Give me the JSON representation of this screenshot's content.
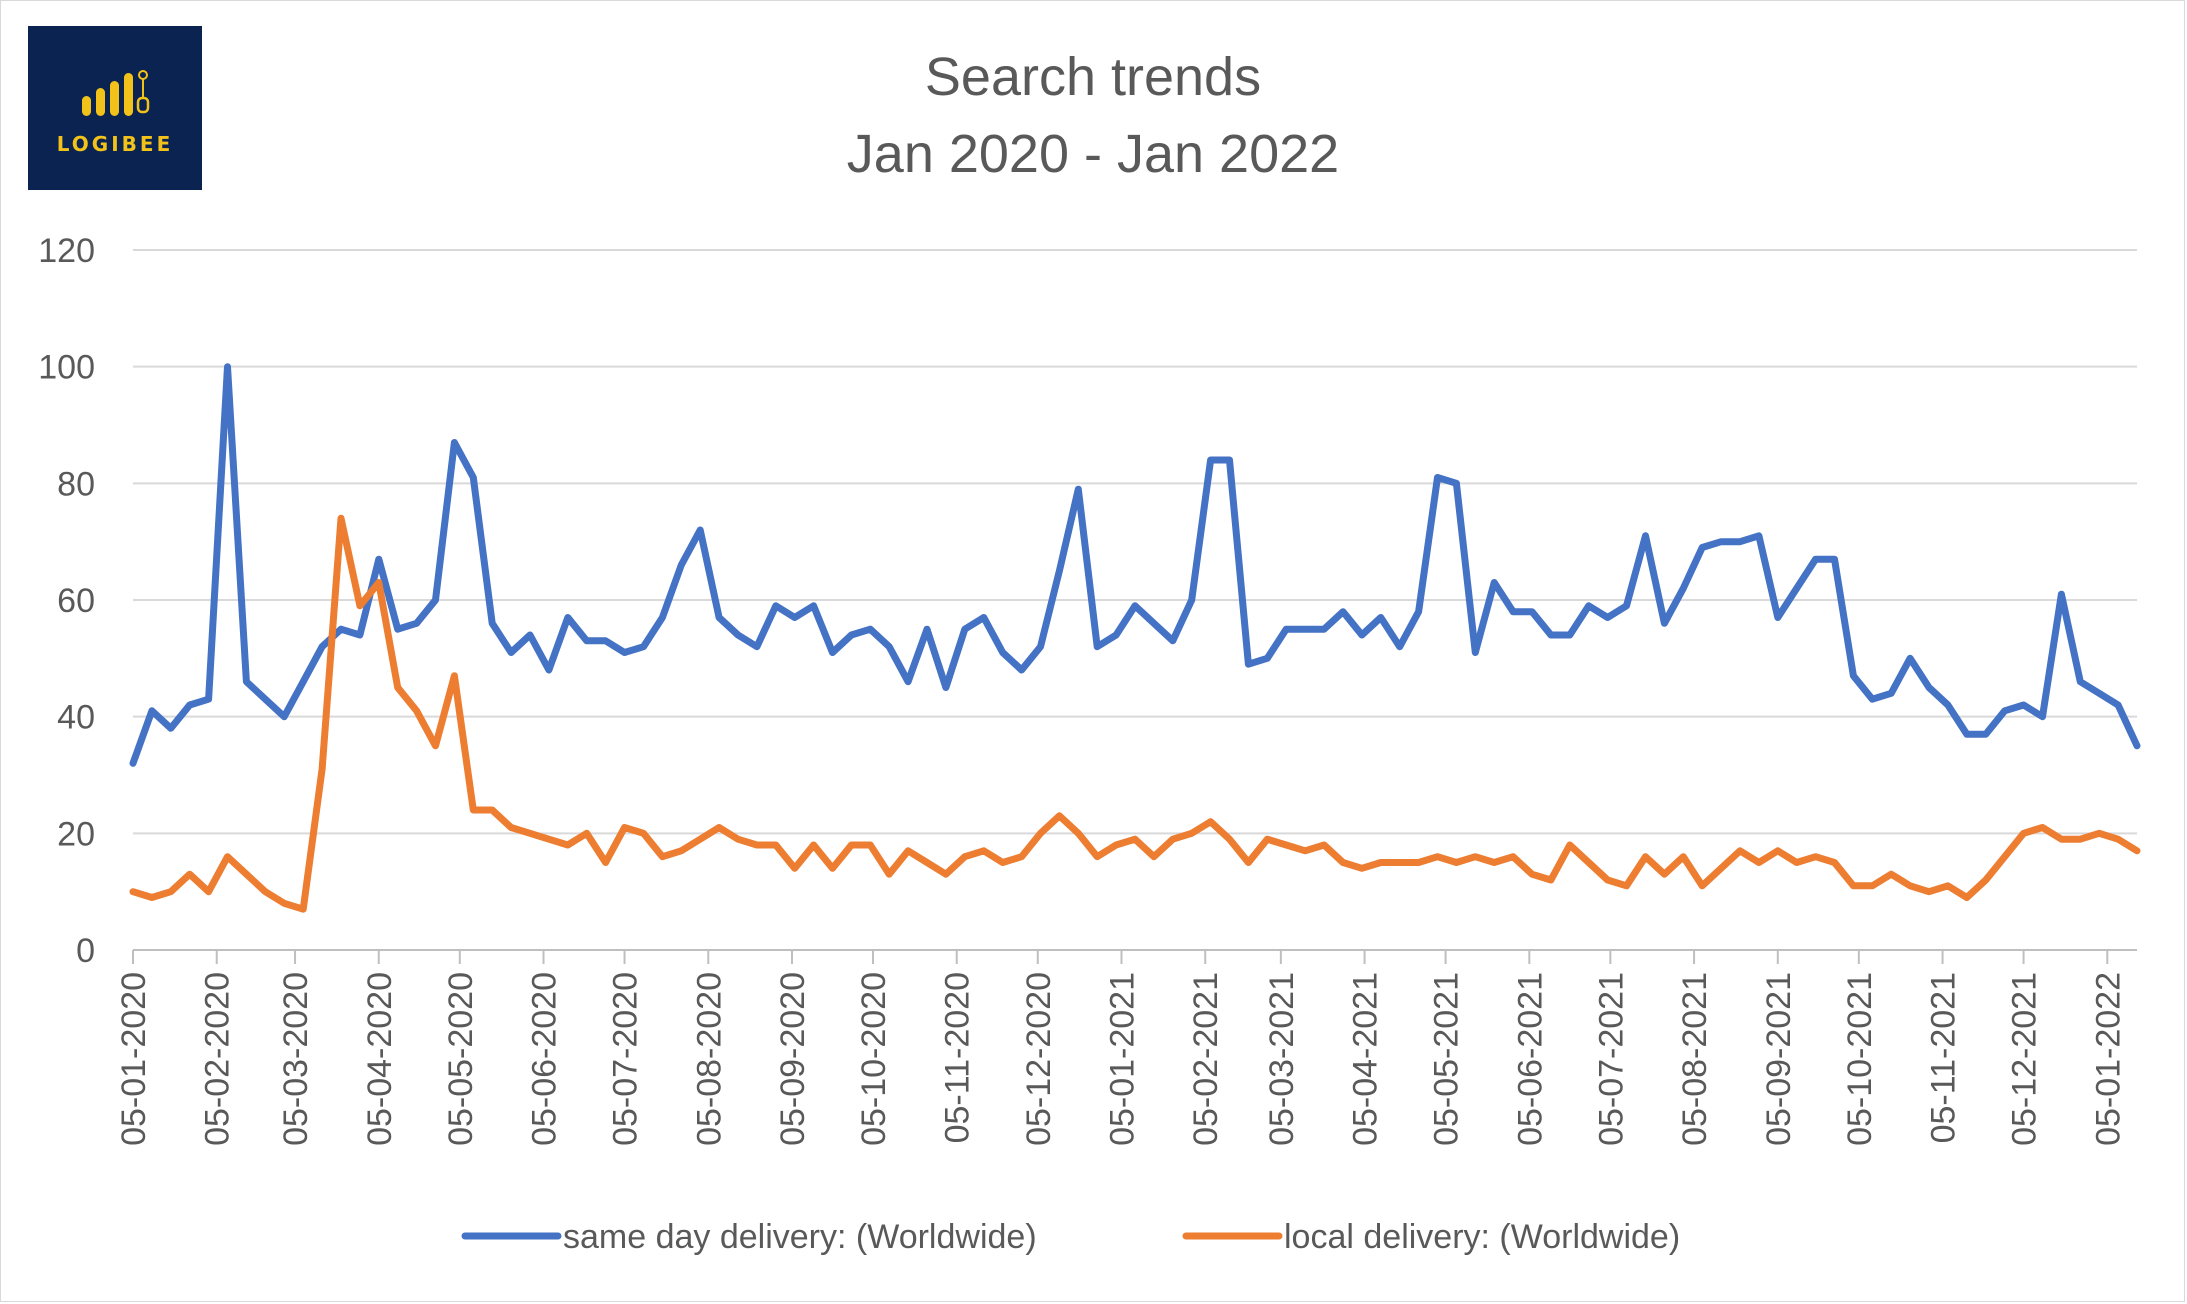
{
  "logo": {
    "text": "LOGIBEE",
    "bg": "#0b2350",
    "accent": "#f2c21b"
  },
  "chart_data": {
    "type": "line",
    "title": [
      "Search trends",
      "Jan 2020 - Jan 2022"
    ],
    "xlabel": "",
    "ylabel": "",
    "ylim": [
      0,
      120
    ],
    "yticks": [
      0,
      20,
      40,
      60,
      80,
      100,
      120
    ],
    "grid": true,
    "legend": "bottom",
    "x_tick_labels": [
      "05-01-2020",
      "05-02-2020",
      "05-03-2020",
      "05-04-2020",
      "05-05-2020",
      "05-06-2020",
      "05-07-2020",
      "05-08-2020",
      "05-09-2020",
      "05-10-2020",
      "05-11-2020",
      "05-12-2020",
      "05-01-2021",
      "05-02-2021",
      "05-03-2021",
      "05-04-2021",
      "05-05-2021",
      "05-06-2021",
      "05-07-2021",
      "05-08-2021",
      "05-09-2021",
      "05-10-2021",
      "05-11-2021",
      "05-12-2021",
      "05-01-2022"
    ],
    "x_start": "2020-01-05",
    "x_step_days": 7,
    "series": [
      {
        "name": "same day delivery: (Worldwide)",
        "color": "#4472c4",
        "values": [
          32,
          41,
          38,
          42,
          43,
          100,
          46,
          43,
          40,
          46,
          52,
          55,
          54,
          67,
          55,
          56,
          60,
          87,
          81,
          56,
          51,
          54,
          48,
          57,
          53,
          53,
          51,
          52,
          57,
          66,
          72,
          57,
          54,
          52,
          59,
          57,
          59,
          51,
          54,
          55,
          52,
          46,
          55,
          45,
          55,
          57,
          51,
          48,
          52,
          65,
          79,
          52,
          54,
          59,
          56,
          53,
          60,
          84,
          84,
          49,
          50,
          55,
          55,
          55,
          58,
          54,
          57,
          52,
          58,
          81,
          80,
          51,
          63,
          58,
          58,
          54,
          54,
          59,
          57,
          59,
          71,
          56,
          62,
          69,
          70,
          70,
          71,
          57,
          62,
          67,
          67,
          47,
          43,
          44,
          50,
          45,
          42,
          37,
          37,
          41,
          42,
          40,
          61,
          46,
          44,
          42,
          35
        ]
      },
      {
        "name": "local delivery: (Worldwide)",
        "color": "#ed7d31",
        "values": [
          10,
          9,
          10,
          13,
          10,
          16,
          13,
          10,
          8,
          7,
          31,
          74,
          59,
          63,
          45,
          41,
          35,
          47,
          24,
          24,
          21,
          20,
          19,
          18,
          20,
          15,
          21,
          20,
          16,
          17,
          19,
          21,
          19,
          18,
          18,
          14,
          18,
          14,
          18,
          18,
          13,
          17,
          15,
          13,
          16,
          17,
          15,
          16,
          20,
          23,
          20,
          16,
          18,
          19,
          16,
          19,
          20,
          22,
          19,
          15,
          19,
          18,
          17,
          18,
          15,
          14,
          15,
          15,
          15,
          16,
          15,
          16,
          15,
          16,
          13,
          12,
          18,
          15,
          12,
          11,
          16,
          13,
          16,
          11,
          14,
          17,
          15,
          17,
          15,
          16,
          15,
          11,
          11,
          13,
          11,
          10,
          11,
          9,
          12,
          16,
          20,
          21,
          19,
          19,
          20,
          19,
          17
        ]
      }
    ]
  }
}
